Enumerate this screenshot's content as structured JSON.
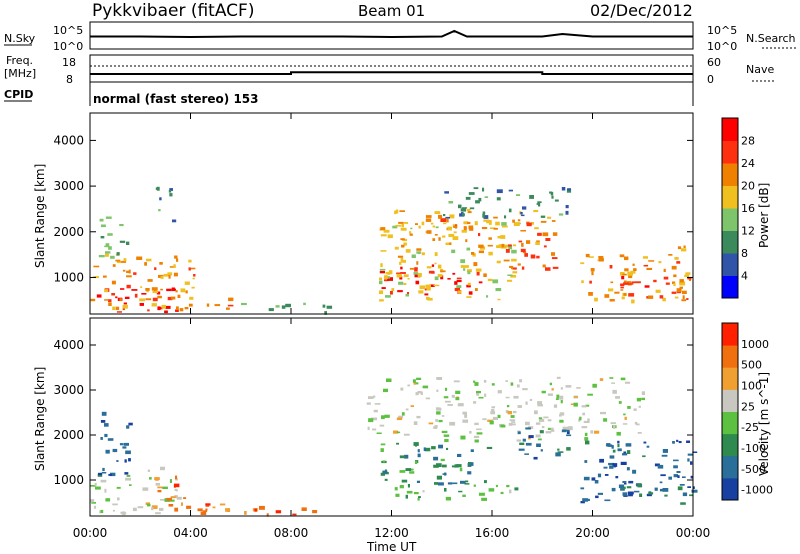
{
  "header": {
    "title": "Pykkvibaer (fitACF)",
    "beam": "Beam 01",
    "date": "02/Dec/2012"
  },
  "nsky_panel": {
    "left_label": "N.Sky",
    "left_ticks": [
      "10^5",
      "10^0"
    ],
    "right_label": "N.Search",
    "right_ticks": [
      "10^5",
      "10^0"
    ]
  },
  "freq_panel": {
    "left_label_line1": "Freq.",
    "left_label_line2": "[MHz]",
    "left_ticks": [
      "18",
      "8"
    ],
    "right_label": "Nave",
    "right_ticks": [
      "60",
      "0"
    ]
  },
  "cpid_panel": {
    "label": "CPID",
    "text": "normal (fast stereo) 153"
  },
  "x_axis": {
    "label": "Time UT",
    "ticks": [
      "00:00",
      "04:00",
      "08:00",
      "12:00",
      "16:00",
      "20:00",
      "00:00"
    ]
  },
  "chart_data": [
    {
      "type": "heatmap",
      "title": "",
      "xlabel": "Time UT",
      "ylabel": "Slant Range [km]",
      "ylim": [
        200,
        4600
      ],
      "y_ticks": [
        1000,
        2000,
        3000,
        4000
      ],
      "colorbar_label": "Power [dB]",
      "colorbar_ticks": [
        "28",
        "24",
        "20",
        "16",
        "12",
        "8",
        "4"
      ],
      "colors": [
        "#0000ff",
        "#2f54a8",
        "#3a8a5c",
        "#7ec46a",
        "#f0c020",
        "#f08000",
        "#ff3010",
        "#ff0000"
      ],
      "regions": [
        {
          "t0": 0.0,
          "t1": 3.5,
          "r0": 250,
          "r1": 800,
          "level": 7
        },
        {
          "t0": 0.0,
          "t1": 4.2,
          "r0": 250,
          "r1": 1500,
          "level": 5
        },
        {
          "t0": 0.3,
          "t1": 1.5,
          "r0": 1400,
          "r1": 2500,
          "level": 3
        },
        {
          "t0": 2.5,
          "t1": 3.3,
          "r0": 2200,
          "r1": 3000,
          "level": 2
        },
        {
          "t0": 3.5,
          "t1": 5.5,
          "r0": 300,
          "r1": 600,
          "level": 5
        },
        {
          "t0": 6.0,
          "t1": 9.5,
          "r0": 250,
          "r1": 450,
          "level": 3
        },
        {
          "t0": 11.5,
          "t1": 15.5,
          "r0": 650,
          "r1": 1300,
          "level": 7
        },
        {
          "t0": 11.5,
          "t1": 17.0,
          "r0": 500,
          "r1": 2300,
          "level": 4
        },
        {
          "t0": 12.0,
          "t1": 18.5,
          "r0": 1700,
          "r1": 2500,
          "level": 5
        },
        {
          "t0": 16.5,
          "t1": 18.5,
          "r0": 1200,
          "r1": 2000,
          "level": 6
        },
        {
          "t0": 14.0,
          "t1": 19.0,
          "r0": 2300,
          "r1": 3000,
          "level": 2
        },
        {
          "t0": 19.5,
          "t1": 24.0,
          "r0": 500,
          "r1": 1700,
          "level": 5
        },
        {
          "t0": 21.0,
          "t1": 23.5,
          "r0": 600,
          "r1": 1100,
          "level": 6
        }
      ]
    },
    {
      "type": "heatmap",
      "title": "",
      "xlabel": "Time UT",
      "ylabel": "Slant Range [km]",
      "ylim": [
        200,
        4600
      ],
      "y_ticks": [
        1000,
        2000,
        3000,
        4000
      ],
      "colorbar_label": "Velocity [m s^-1]",
      "colorbar_ticks": [
        "1000",
        "500",
        "100",
        "25",
        "-25",
        "-100",
        "-500",
        "-1000"
      ],
      "colors": [
        "#1840a0",
        "#2a6e9a",
        "#2e8a4e",
        "#5cc040",
        "#c8c8c0",
        "#f0a030",
        "#f07010",
        "#ff2000"
      ],
      "regions": [
        {
          "t0": 0.0,
          "t1": 3.5,
          "r0": 250,
          "r1": 1300,
          "level": 4
        },
        {
          "t0": 2.5,
          "t1": 3.8,
          "r0": 300,
          "r1": 1100,
          "level": 6
        },
        {
          "t0": 0.3,
          "t1": 1.6,
          "r0": 1100,
          "r1": 2600,
          "level": 1
        },
        {
          "t0": 3.2,
          "t1": 9.5,
          "r0": 250,
          "r1": 500,
          "level": 6
        },
        {
          "t0": 11.0,
          "t1": 22.0,
          "r0": 1900,
          "r1": 3300,
          "level": 4
        },
        {
          "t0": 11.5,
          "t1": 16.0,
          "r0": 900,
          "r1": 1900,
          "level": 2
        },
        {
          "t0": 12.0,
          "t1": 17.0,
          "r0": 550,
          "r1": 900,
          "level": 3
        },
        {
          "t0": 17.0,
          "t1": 19.0,
          "r0": 1400,
          "r1": 2200,
          "level": 1
        },
        {
          "t0": 19.5,
          "t1": 24.0,
          "r0": 500,
          "r1": 1900,
          "level": 1
        },
        {
          "t0": 21.0,
          "t1": 24.0,
          "r0": 600,
          "r1": 1000,
          "level": 2
        }
      ]
    }
  ],
  "nsky_series": {
    "x": [
      0,
      2,
      4,
      6,
      8,
      10,
      12,
      14,
      14.5,
      15,
      16,
      18,
      18.8,
      20,
      22,
      24
    ],
    "y": [
      2.5,
      2.5,
      2.4,
      2.5,
      2.5,
      2.5,
      2.4,
      2.5,
      3.6,
      2.5,
      2.5,
      2.5,
      3.0,
      2.5,
      2.5,
      2.5
    ]
  },
  "freq_series": {
    "x": [
      0,
      8.0,
      8.0,
      18.0,
      18.0,
      24
    ],
    "y": [
      10.5,
      10.5,
      11.6,
      11.6,
      10.5,
      10.5
    ]
  }
}
